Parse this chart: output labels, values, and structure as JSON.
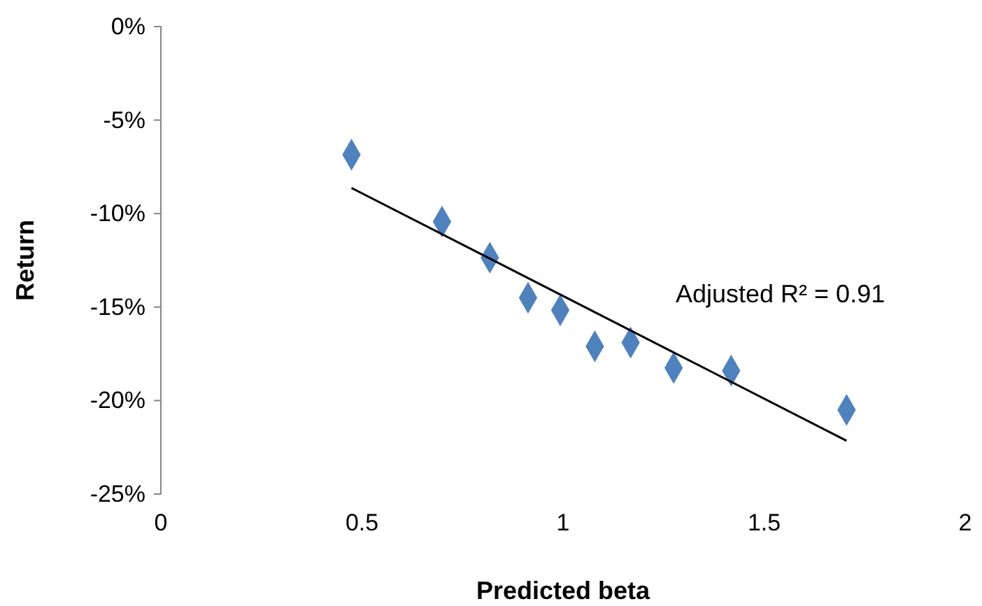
{
  "chart_data": {
    "type": "scatter",
    "xlabel": "Predicted beta",
    "ylabel": "Return",
    "xlim": [
      0,
      2
    ],
    "xticks": [
      0,
      0.5,
      1,
      1.5,
      2
    ],
    "ylim": [
      -25,
      0
    ],
    "yticks": [
      {
        "value": -25,
        "label": "-25%"
      },
      {
        "value": -20,
        "label": "-20%"
      },
      {
        "value": -15,
        "label": "-15%"
      },
      {
        "value": -10,
        "label": "-10%"
      },
      {
        "value": -5,
        "label": "-5%"
      },
      {
        "value": 0,
        "label": "0%"
      }
    ],
    "marker": "diamond",
    "grid": false,
    "annotations": [
      "Adjusted R² = 0.91"
    ],
    "series": [
      {
        "color": "#4f81bd",
        "x": [
          0.474,
          0.699,
          0.818,
          0.913,
          0.993,
          1.079,
          1.168,
          1.275,
          1.418,
          1.705
        ],
        "values": [
          -6.85,
          -10.43,
          -12.36,
          -14.5,
          -15.17,
          -17.1,
          -16.9,
          -18.25,
          -18.4,
          -20.5
        ]
      },
      {
        "type": "line",
        "color": "#000000",
        "marker": "none",
        "x": [
          0.474,
          1.705
        ],
        "values": [
          -8.63,
          -22.15
        ]
      }
    ]
  }
}
